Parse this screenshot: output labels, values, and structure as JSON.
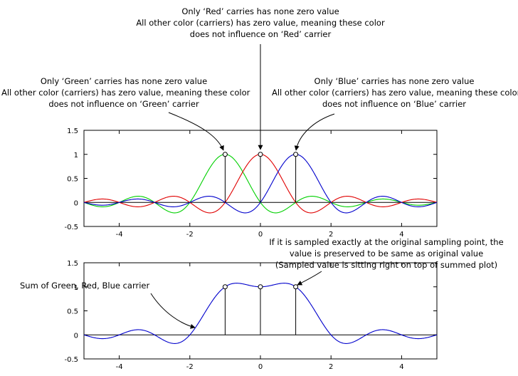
{
  "annotations": {
    "red": [
      "Only ‘Red’ carries has none zero value",
      "All other color (carriers) has zero value, meaning these color",
      "does not influence on ‘Red’ carrier"
    ],
    "green": [
      "Only ‘Green’ carries has none zero value",
      "All other color (carriers) has zero value, meaning these color",
      "does not influence on ‘Green’ carrier"
    ],
    "blue": [
      "Only ‘Blue’ carries has none  zero value",
      "All other color (carriers) has zero value, meaning these color",
      "does not influence on ‘Blue’ carrier"
    ],
    "preserved": [
      "If it is sampled exactly at the original sampling point, the",
      "value is preserved to be same as original value",
      "(Sampled value is sitting  right on top of summed plot)"
    ],
    "sum": [
      "Sum of Green, Red, Blue carrier"
    ]
  },
  "colors": {
    "red": "#e00000",
    "green": "#00d000",
    "blue": "#0000cc",
    "axis": "#000000"
  },
  "chart_data": [
    {
      "type": "line",
      "title": "",
      "xlim": [
        -5,
        5
      ],
      "ylim": [
        -0.5,
        1.5
      ],
      "xticks": [
        "-4",
        "-2",
        "0",
        "2",
        "4"
      ],
      "yticks": [
        "1.5",
        "1",
        "0.5",
        "0",
        "-0.5"
      ],
      "x_tick_values": [
        -4,
        -2,
        0,
        2,
        4
      ],
      "y_tick_values": [
        1.5,
        1,
        0.5,
        0,
        -0.5
      ],
      "grid": false,
      "series": [
        {
          "color": "green",
          "function": "sinc(x+1)"
        },
        {
          "color": "red",
          "function": "sinc(x)"
        },
        {
          "color": "blue",
          "function": "sinc(x-1)"
        }
      ],
      "samples": [
        {
          "x": -1,
          "y": 1
        },
        {
          "x": 0,
          "y": 1
        },
        {
          "x": 1,
          "y": 1
        }
      ]
    },
    {
      "type": "line",
      "title": "",
      "xlim": [
        -5,
        5
      ],
      "ylim": [
        -0.5,
        1.5
      ],
      "xticks": [
        "-4",
        "-2",
        "0",
        "2",
        "4"
      ],
      "yticks": [
        "1.5",
        "1",
        "0.5",
        "0",
        "-0.5"
      ],
      "x_tick_values": [
        -4,
        -2,
        0,
        2,
        4
      ],
      "y_tick_values": [
        1.5,
        1,
        0.5,
        0,
        -0.5
      ],
      "grid": false,
      "series": [
        {
          "color": "blue",
          "function": "sinc(x+1)+sinc(x)+sinc(x-1)"
        }
      ],
      "samples": [
        {
          "x": -1,
          "y": 1
        },
        {
          "x": 0,
          "y": 1
        },
        {
          "x": 1,
          "y": 1
        }
      ]
    }
  ]
}
